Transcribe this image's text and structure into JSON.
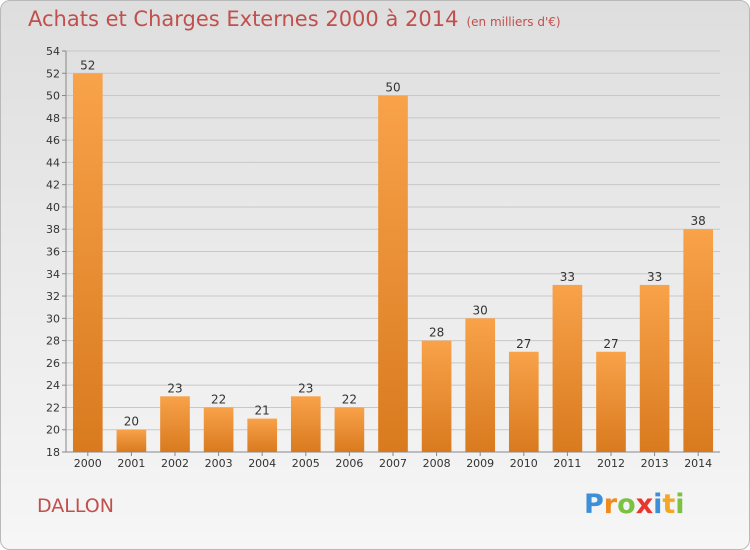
{
  "header": {
    "title": "Achats et Charges Externes 2000 à 2014",
    "unit_note": "(en milliers d'€)"
  },
  "footer": {
    "city": "DALLON",
    "logo_letters": [
      "P",
      "r",
      "o",
      "x",
      "i",
      "t",
      "i"
    ],
    "logo_colors": [
      "#3d8fd8",
      "#f08a1c",
      "#7cc242",
      "#e8352e",
      "#3d8fd8",
      "#f5a623",
      "#7cc242"
    ]
  },
  "colors": {
    "bar": "#f59a3b",
    "bar_dark": "#d97a1e",
    "title": "#c0504d"
  },
  "chart_data": {
    "type": "bar",
    "title": "Achats et Charges Externes 2000 à 2014",
    "subtitle": "(en milliers d'€)",
    "xlabel": "",
    "ylabel": "",
    "categories": [
      "2000",
      "2001",
      "2002",
      "2003",
      "2004",
      "2005",
      "2006",
      "2007",
      "2008",
      "2009",
      "2010",
      "2011",
      "2012",
      "2013",
      "2014"
    ],
    "values": [
      52,
      20,
      23,
      22,
      21,
      23,
      22,
      50,
      28,
      30,
      27,
      33,
      27,
      33,
      38
    ],
    "ylim": [
      18,
      54
    ],
    "yticks": [
      18,
      20,
      22,
      24,
      26,
      28,
      30,
      32,
      34,
      36,
      38,
      40,
      42,
      44,
      46,
      48,
      50,
      52,
      54
    ],
    "grid": true
  }
}
